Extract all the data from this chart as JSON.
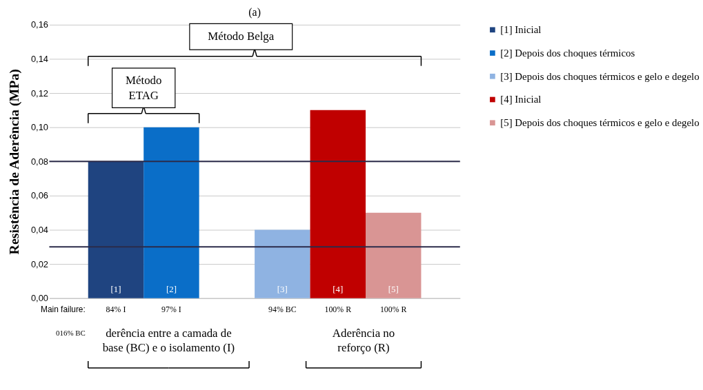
{
  "chart_data": {
    "type": "bar",
    "title": "(a)",
    "ylabel": "Resistência de Aderência (MPa)",
    "categories": [
      "[1]",
      "[2]",
      null,
      "[3]",
      "[4]",
      "[5]"
    ],
    "series": [
      {
        "name": "[1] Inicial",
        "color": "#1f4480",
        "values": [
          0.08,
          null,
          null,
          null,
          null,
          null
        ]
      },
      {
        "name": "[2] Depois dos choques térmicos",
        "color": "#0a6ec8",
        "values": [
          null,
          0.1,
          null,
          null,
          null,
          null
        ]
      },
      {
        "name": "[3] Depois dos choques térmicos e gelo e degelo",
        "color": "#8fb3e2",
        "values": [
          null,
          null,
          null,
          0.04,
          null,
          null
        ]
      },
      {
        "name": "[4] Inicial",
        "color": "#c00000",
        "values": [
          null,
          null,
          null,
          null,
          0.11,
          null
        ]
      },
      {
        "name": "[5] Depois dos choques térmicos e gelo e degelo",
        "color": "#d99594",
        "values": [
          null,
          null,
          null,
          null,
          null,
          0.05
        ]
      }
    ],
    "ylim": [
      0,
      0.16
    ],
    "yticks": [
      {
        "value": 0,
        "label": "0,00"
      },
      {
        "value": 0.02,
        "label": "0,02"
      },
      {
        "value": 0.04,
        "label": "0,04"
      },
      {
        "value": 0.06,
        "label": "0,06"
      },
      {
        "value": 0.08,
        "label": "0,08"
      },
      {
        "value": 0.1,
        "label": "0,10"
      },
      {
        "value": 0.12,
        "label": "0,12"
      },
      {
        "value": 0.14,
        "label": "0,14"
      },
      {
        "value": 0.16,
        "label": "0,16"
      }
    ],
    "grid": "y",
    "legend": "right",
    "tick_labels": "y",
    "ref_lines": [
      {
        "axis": "y",
        "value": 0.08,
        "color": "#2b2b4a"
      },
      {
        "axis": "y",
        "value": 0.03,
        "color": "#2b2b4a"
      }
    ],
    "annotations": [
      "Método Belga",
      "Método ETAG",
      "Main failure:",
      "84% I",
      "97%  I",
      "94% BC",
      "100% R",
      "100% R",
      "016% BC",
      "derência entre a camada de base (BC) e o isolamento (I)",
      "Aderência no reforço (R)"
    ]
  }
}
